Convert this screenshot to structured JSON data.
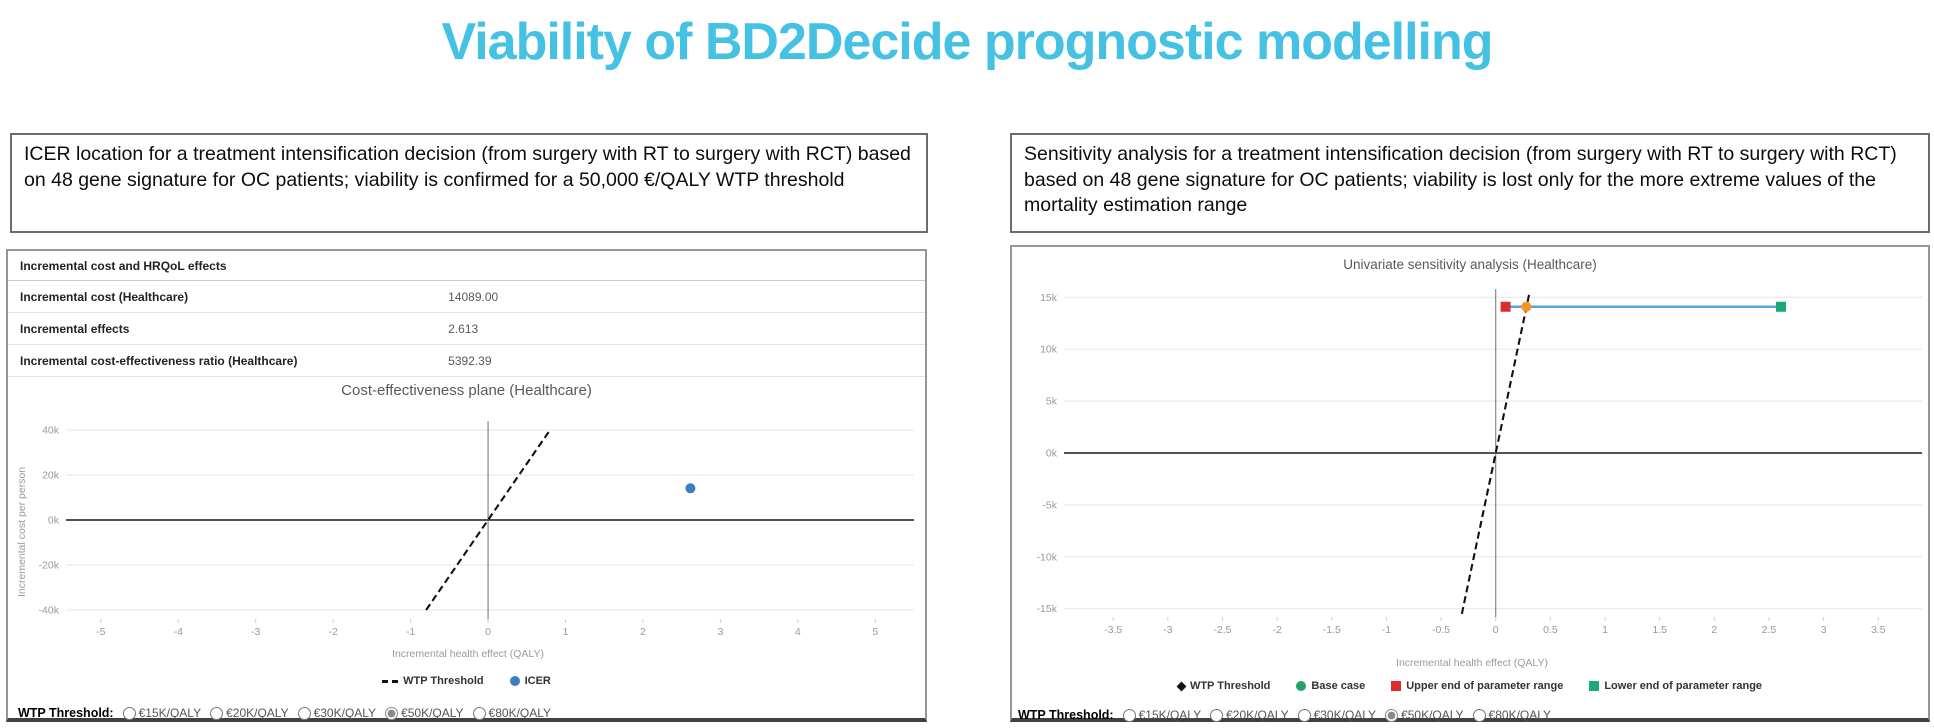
{
  "slide": {
    "title": "Viability of BD2Decide prognostic modelling",
    "accent_color": "#44c1e3"
  },
  "left_panel": {
    "caption": "ICER location for a treatment intensification decision (from surgery with RT to  surgery with RCT) based on 48 gene signature for OC patients; viability is confirmed for a 50,000 €/QALY WTP threshold",
    "table": {
      "header": "Incremental cost and HRQoL effects",
      "rows": [
        {
          "label": "Incremental cost (Healthcare)",
          "value": "14089.00"
        },
        {
          "label": "Incremental effects",
          "value": "2.613"
        },
        {
          "label": "Incremental cost-effectiveness ratio (Healthcare)",
          "value": "5392.39"
        }
      ]
    }
  },
  "right_panel": {
    "caption": "Sensitivity analysis for a treatment intensification decision (from surgery with RT to  surgery with RCT) based on 48 gene signature for OC patients; viability is lost only for the more extreme values of the mortality estimation range"
  },
  "wtp_selector": {
    "label": "WTP Threshold:",
    "options": [
      "€15K/QALY",
      "€20K/QALY",
      "€30K/QALY",
      "€50K/QALY",
      "€80K/QALY"
    ],
    "selected": "€50K/QALY"
  },
  "chart_data": [
    {
      "type": "scatter",
      "title": "Cost-effectiveness plane (Healthcare)",
      "xlabel": "Incremental health effect (QALY)",
      "ylabel": "Incremental cost per person",
      "xlim": [
        -5.45,
        5.5
      ],
      "ylim": [
        -44000,
        44000
      ],
      "xticks": [
        -5,
        -4,
        -3,
        -2,
        -1,
        0,
        1,
        2,
        3,
        4,
        5
      ],
      "xtick_labels": [
        "-5",
        "-4",
        "-3",
        "-2",
        "-1",
        "0",
        "1",
        "2",
        "3",
        "4",
        "5"
      ],
      "yticks": [
        -40000,
        -20000,
        0,
        20000,
        40000
      ],
      "ytick_labels": [
        "-40k",
        "-20k",
        "0k",
        "20k",
        "40k"
      ],
      "grid": true,
      "wtp_threshold": {
        "slope_per_qaly": 50000,
        "clip_y": 40000,
        "style": "dashed",
        "color": "#111111"
      },
      "points": [
        {
          "name": "ICER",
          "x": 2.613,
          "y": 14089,
          "marker": "circle",
          "color": "#3d7ebf"
        }
      ],
      "legend": [
        {
          "label": "WTP Threshold",
          "marker": "dash",
          "color": "#111111"
        },
        {
          "label": "ICER",
          "marker": "circle",
          "color": "#3d7ebf"
        }
      ],
      "legend_position": "bottom"
    },
    {
      "type": "scatter",
      "title": "Univariate sensitivity analysis (Healthcare)",
      "xlabel": "Incremental health effect (QALY)",
      "ylabel": "",
      "xlim": [
        -3.95,
        3.9
      ],
      "ylim": [
        -15800,
        15800
      ],
      "xticks": [
        -3.5,
        -3,
        -2.5,
        -2,
        -1.5,
        -1,
        -0.5,
        0,
        0.5,
        1,
        1.5,
        2,
        2.5,
        3,
        3.5
      ],
      "xtick_labels": [
        "-3.5",
        "-3",
        "-2.5",
        "-2",
        "-1.5",
        "-1",
        "-0.5",
        "0",
        "0.5",
        "1",
        "1.5",
        "2",
        "2.5",
        "3",
        "3.5"
      ],
      "yticks": [
        -15000,
        -10000,
        -5000,
        0,
        5000,
        10000,
        15000
      ],
      "ytick_labels": [
        "-15k",
        "-10k",
        "-5k",
        "0k",
        "5k",
        "10k",
        "15k"
      ],
      "grid": true,
      "wtp_threshold": {
        "slope_per_qaly": 50000,
        "clip_y": 15500,
        "style": "dashed",
        "color": "#111111"
      },
      "range_line": {
        "y": 14089,
        "x_from": 0.09,
        "x_to": 2.61,
        "color": "#5fa2d8"
      },
      "points": [
        {
          "name": "upper-end-of-parameter-range",
          "x": 0.09,
          "y": 14089,
          "marker": "square",
          "color": "#dd2c2c"
        },
        {
          "name": "base-case",
          "x": 0.28,
          "y": 14089,
          "marker": "circle",
          "color": "#f5941f"
        },
        {
          "name": "lower-end-of-parameter-range",
          "x": 2.61,
          "y": 14089,
          "marker": "square",
          "color": "#1aa87c"
        }
      ],
      "legend": [
        {
          "label": "WTP Threshold",
          "marker": "diamond",
          "color": "#111111"
        },
        {
          "label": "Base case",
          "marker": "circle",
          "color": "#21a366"
        },
        {
          "label": "Upper end of parameter range",
          "marker": "square",
          "color": "#dd2c2c"
        },
        {
          "label": "Lower end of parameter range",
          "marker": "square",
          "color": "#1aa87c"
        }
      ],
      "legend_position": "bottom"
    }
  ]
}
